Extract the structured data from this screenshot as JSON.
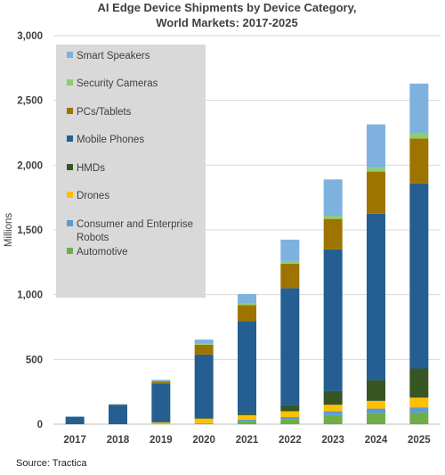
{
  "chart_data": {
    "type": "bar",
    "stacked": true,
    "title": "AI Edge Device Shipments by Device Category,",
    "subtitle": "World Markets: 2017-2025",
    "xlabel": "",
    "ylabel": "Millions",
    "ylim": [
      0,
      3000
    ],
    "yticks": [
      "0",
      "500",
      "1,000",
      "1,500",
      "2,000",
      "2,500",
      "3,000"
    ],
    "ytick_values": [
      0,
      500,
      1000,
      1500,
      2000,
      2500,
      3000
    ],
    "grid": true,
    "legend_position": "top-left",
    "source": "Source: Tractica",
    "categories": [
      "2017",
      "2018",
      "2019",
      "2020",
      "2021",
      "2022",
      "2023",
      "2024",
      "2025"
    ],
    "series": [
      {
        "name": "Automotive",
        "color": "#70ad47",
        "values": [
          0,
          0,
          2,
          5,
          25,
          35,
          70,
          85,
          90
        ]
      },
      {
        "name": "Consumer and Enterprise Robots",
        "color": "#5b9bd5",
        "values": [
          0,
          0,
          1,
          3,
          10,
          20,
          30,
          35,
          40
        ]
      },
      {
        "name": "Drones",
        "color": "#ffc000",
        "values": [
          0,
          0,
          10,
          35,
          35,
          45,
          50,
          60,
          75
        ]
      },
      {
        "name": "HMDs",
        "color": "#375623",
        "values": [
          0,
          0,
          2,
          5,
          15,
          45,
          105,
          160,
          225
        ]
      },
      {
        "name": "Mobile Phones",
        "color": "#255e91",
        "values": [
          58,
          150,
          300,
          490,
          710,
          905,
          1095,
          1285,
          1430
        ]
      },
      {
        "name": "PCs/Tablets",
        "color": "#9e7400",
        "values": [
          0,
          3,
          15,
          75,
          125,
          190,
          235,
          325,
          345
        ]
      },
      {
        "name": "Security Cameras",
        "color": "#8fcc6f",
        "values": [
          0,
          1,
          3,
          10,
          10,
          20,
          25,
          30,
          45
        ]
      },
      {
        "name": "Smart Speakers",
        "color": "#7fb1df",
        "values": [
          0,
          2,
          10,
          30,
          75,
          165,
          280,
          335,
          380
        ]
      }
    ],
    "legend_order": [
      "Smart Speakers",
      "Security Cameras",
      "PCs/Tablets",
      "Mobile Phones",
      "HMDs",
      "Drones",
      "Consumer and Enterprise Robots",
      "Automotive"
    ],
    "legend_labels": {
      "Smart Speakers": [
        "Smart Speakers"
      ],
      "Security Cameras": [
        "Security Cameras"
      ],
      "PCs/Tablets": [
        "PCs/Tablets"
      ],
      "Mobile Phones": [
        "Mobile Phones"
      ],
      "HMDs": [
        "HMDs"
      ],
      "Drones": [
        "Drones"
      ],
      "Consumer and Enterprise Robots": [
        "Consumer and Enterprise",
        "Robots"
      ],
      "Automotive": [
        "Automotive"
      ]
    }
  }
}
